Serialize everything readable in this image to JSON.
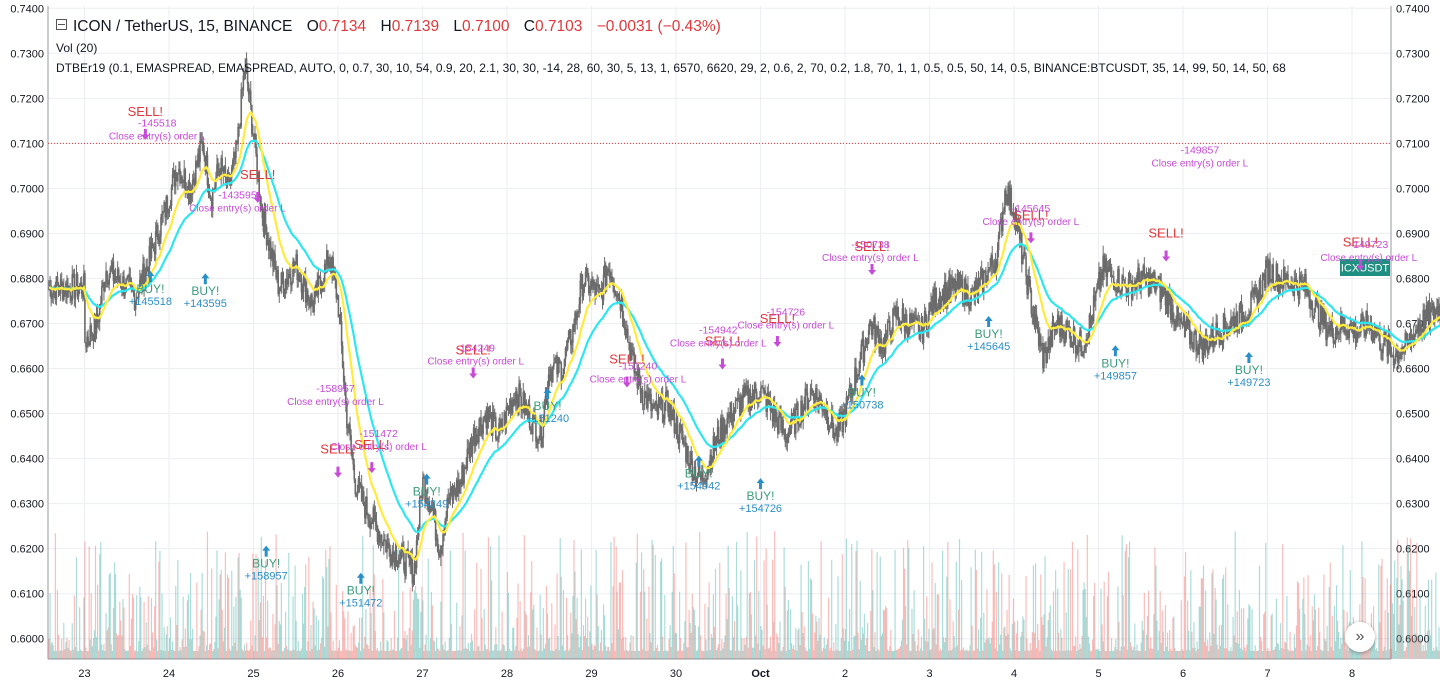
{
  "header": {
    "symbol": "ICON / TetherUS, 15, BINANCE",
    "o_label": "O",
    "o_value": "0.7134",
    "h_label": "H",
    "h_value": "0.7139",
    "l_label": "L",
    "l_value": "0.7100",
    "c_label": "C",
    "c_value": "0.7103",
    "change": "−0.0031 (−0.43%)"
  },
  "volume_label": "Vol (20)",
  "indicator_label": "DTBEr19 (0.1, EMASPREAD, EMASPREAD, AUTO, 0, 0.7, 30, 10, 54, 0.9, 20, 2.1, 30, 30, -14, 28, 60, 30, 5, 13, 1, 6570, 6620, 29, 2, 0.6, 2, 70, 0.2, 1.8, 70, 1, 1, 0.5, 0.5, 50, 14, 0.5, BINANCE:BTCUSDT, 35, 14, 99, 50, 14, 50, 68, 2...",
  "price_badge": "ICXUSDT",
  "colors": {
    "up": "#26a69a",
    "down": "#ef5350",
    "candle": "#6b6b6b",
    "ema_fast": "#ffeb3b",
    "ema_slow": "#2ee6f0",
    "buy": "#2a8ec9",
    "sell": "#e0383a",
    "close": "#c74ad8",
    "current_price_line": "#e0383a"
  },
  "chart_data": {
    "type": "candlestick",
    "y_ticks": [
      "0.7400",
      "0.7300",
      "0.7200",
      "0.7100",
      "0.7000",
      "0.6900",
      "0.6800",
      "0.6700",
      "0.6600",
      "0.6500",
      "0.6400",
      "0.6300",
      "0.6200",
      "0.6100",
      "0.6000"
    ],
    "ylim": [
      0.5955,
      0.7405
    ],
    "x_ticks": [
      "23",
      "24",
      "25",
      "26",
      "27",
      "28",
      "29",
      "30",
      "Oct",
      "2",
      "3",
      "4",
      "5",
      "6",
      "7",
      "8"
    ],
    "current_price": 0.71,
    "price_path": [
      [
        0,
        0.666
      ],
      [
        0.15,
        0.67
      ],
      [
        0.25,
        0.682
      ],
      [
        0.45,
        0.679
      ],
      [
        0.6,
        0.676
      ],
      [
        0.75,
        0.683
      ],
      [
        0.9,
        0.692
      ],
      [
        1.0,
        0.698
      ],
      [
        1.1,
        0.705
      ],
      [
        1.25,
        0.7
      ],
      [
        1.4,
        0.71
      ],
      [
        1.5,
        0.698
      ],
      [
        1.6,
        0.705
      ],
      [
        1.7,
        0.7
      ],
      [
        1.8,
        0.708
      ],
      [
        1.9,
        0.728
      ],
      [
        1.95,
        0.72
      ],
      [
        2.1,
        0.695
      ],
      [
        2.3,
        0.678
      ],
      [
        2.5,
        0.683
      ],
      [
        2.7,
        0.674
      ],
      [
        2.9,
        0.685
      ],
      [
        3.0,
        0.675
      ],
      [
        3.1,
        0.65
      ],
      [
        3.2,
        0.635
      ],
      [
        3.3,
        0.63
      ],
      [
        3.45,
        0.625
      ],
      [
        3.6,
        0.62
      ],
      [
        3.75,
        0.618
      ],
      [
        3.9,
        0.615
      ],
      [
        4.0,
        0.635
      ],
      [
        4.1,
        0.63
      ],
      [
        4.2,
        0.62
      ],
      [
        4.3,
        0.63
      ],
      [
        4.45,
        0.635
      ],
      [
        4.6,
        0.645
      ],
      [
        4.75,
        0.65
      ],
      [
        4.9,
        0.645
      ],
      [
        5.0,
        0.65
      ],
      [
        5.1,
        0.655
      ],
      [
        5.25,
        0.65
      ],
      [
        5.4,
        0.645
      ],
      [
        5.5,
        0.66
      ],
      [
        5.65,
        0.66
      ],
      [
        5.8,
        0.67
      ],
      [
        5.9,
        0.68
      ],
      [
        6.0,
        0.678
      ],
      [
        6.1,
        0.676
      ],
      [
        6.2,
        0.683
      ],
      [
        6.35,
        0.675
      ],
      [
        6.5,
        0.66
      ],
      [
        6.6,
        0.655
      ],
      [
        6.75,
        0.65
      ],
      [
        6.9,
        0.652
      ],
      [
        7.05,
        0.645
      ],
      [
        7.2,
        0.638
      ],
      [
        7.3,
        0.635
      ],
      [
        7.5,
        0.645
      ],
      [
        7.65,
        0.65
      ],
      [
        7.8,
        0.653
      ],
      [
        8.0,
        0.655
      ],
      [
        8.15,
        0.65
      ],
      [
        8.3,
        0.645
      ],
      [
        8.45,
        0.65
      ],
      [
        8.6,
        0.655
      ],
      [
        8.75,
        0.652
      ],
      [
        8.9,
        0.645
      ],
      [
        9.0,
        0.65
      ],
      [
        9.15,
        0.66
      ],
      [
        9.3,
        0.67
      ],
      [
        9.45,
        0.665
      ],
      [
        9.6,
        0.672
      ],
      [
        9.75,
        0.67
      ],
      [
        9.9,
        0.668
      ],
      [
        10.05,
        0.675
      ],
      [
        10.2,
        0.677
      ],
      [
        10.35,
        0.678
      ],
      [
        10.5,
        0.676
      ],
      [
        10.65,
        0.68
      ],
      [
        10.8,
        0.685
      ],
      [
        10.9,
        0.7
      ],
      [
        11.0,
        0.695
      ],
      [
        11.1,
        0.685
      ],
      [
        11.25,
        0.67
      ],
      [
        11.35,
        0.662
      ],
      [
        11.5,
        0.67
      ],
      [
        11.65,
        0.668
      ],
      [
        11.8,
        0.665
      ],
      [
        11.9,
        0.67
      ],
      [
        12.05,
        0.682
      ],
      [
        12.2,
        0.68
      ],
      [
        12.35,
        0.678
      ],
      [
        12.5,
        0.68
      ],
      [
        12.65,
        0.679
      ],
      [
        12.8,
        0.676
      ],
      [
        12.95,
        0.67
      ],
      [
        13.1,
        0.667
      ],
      [
        13.25,
        0.665
      ],
      [
        13.4,
        0.668
      ],
      [
        13.55,
        0.67
      ],
      [
        13.7,
        0.672
      ],
      [
        13.85,
        0.675
      ],
      [
        14.0,
        0.682
      ],
      [
        14.15,
        0.68
      ],
      [
        14.3,
        0.679
      ],
      [
        14.45,
        0.678
      ],
      [
        14.6,
        0.672
      ],
      [
        14.75,
        0.668
      ],
      [
        14.9,
        0.67
      ],
      [
        15.05,
        0.668
      ],
      [
        15.2,
        0.67
      ],
      [
        15.35,
        0.666
      ],
      [
        15.5,
        0.663
      ],
      [
        15.65,
        0.665
      ],
      [
        15.8,
        0.67
      ],
      [
        15.95,
        0.672
      ],
      [
        16.1,
        0.675
      ],
      [
        16.2,
        0.676
      ],
      [
        16.45,
        0.678
      ]
    ],
    "signals": [
      {
        "type": "buy",
        "day": 0.78,
        "price": 0.679,
        "label": "BUY!",
        "value": "+145518"
      },
      {
        "type": "buy",
        "day": 1.43,
        "price": 0.6785,
        "label": "BUY!",
        "value": "+143595"
      },
      {
        "type": "buy",
        "day": 2.15,
        "price": 0.618,
        "label": "BUY!",
        "value": "+158957"
      },
      {
        "type": "buy",
        "day": 3.27,
        "price": 0.612,
        "label": "BUY!",
        "value": "+151472"
      },
      {
        "type": "buy",
        "day": 4.05,
        "price": 0.634,
        "label": "BUY!",
        "value": "+154249"
      },
      {
        "type": "buy",
        "day": 5.48,
        "price": 0.653,
        "label": "BUY!",
        "value": "+151240"
      },
      {
        "type": "buy",
        "day": 7.27,
        "price": 0.638,
        "label": "BUY!",
        "value": "+154942"
      },
      {
        "type": "buy",
        "day": 8.0,
        "price": 0.633,
        "label": "BUY!",
        "value": "+154726"
      },
      {
        "type": "buy",
        "day": 9.2,
        "price": 0.656,
        "label": "BUY!",
        "value": "+150738"
      },
      {
        "type": "buy",
        "day": 10.7,
        "price": 0.669,
        "label": "BUY!",
        "value": "+145645"
      },
      {
        "type": "buy",
        "day": 12.2,
        "price": 0.6625,
        "label": "BUY!",
        "value": "+149857"
      },
      {
        "type": "buy",
        "day": 13.78,
        "price": 0.661,
        "label": "BUY!",
        "value": "+149723"
      },
      {
        "type": "sell",
        "day": 0.72,
        "price": 0.713,
        "label": "SELL!",
        "value": "-145518"
      },
      {
        "type": "sell",
        "day": 2.05,
        "price": 0.699,
        "label": "SELL!",
        "value": "-143595"
      },
      {
        "type": "sell",
        "day": 3.0,
        "price": 0.638,
        "label": "SELL!",
        "value": "-158957"
      },
      {
        "type": "sell",
        "day": 3.4,
        "price": 0.639,
        "label": "SELL!",
        "value": "-151472"
      },
      {
        "type": "sell",
        "day": 4.6,
        "price": 0.66,
        "label": "SELL!",
        "value": "-154249"
      },
      {
        "type": "sell",
        "day": 6.42,
        "price": 0.658,
        "label": "SELL!",
        "value": "-151240"
      },
      {
        "type": "sell",
        "day": 7.55,
        "price": 0.662,
        "label": "SELL!",
        "value": "-154942"
      },
      {
        "type": "sell",
        "day": 8.2,
        "price": 0.667,
        "label": "SELL!",
        "value": "-154726"
      },
      {
        "type": "sell",
        "day": 9.32,
        "price": 0.683,
        "label": "SELL!",
        "value": "-150738"
      },
      {
        "type": "sell",
        "day": 11.2,
        "price": 0.69,
        "label": "SELL!",
        "value": "-145645"
      },
      {
        "type": "sell",
        "day": 12.8,
        "price": 0.686,
        "label": "SELL!",
        "value": "-149857"
      },
      {
        "type": "sell",
        "day": 15.1,
        "price": 0.684,
        "label": "SELL!",
        "value": "-149723"
      }
    ],
    "close_label": "Close entry(s) order L",
    "close_marks": [
      {
        "day": 0.86,
        "price": 0.708,
        "value": "-145518"
      },
      {
        "day": 1.81,
        "price": 0.692,
        "value": "-143595"
      },
      {
        "day": 2.97,
        "price": 0.649,
        "value": "-158957"
      },
      {
        "day": 3.48,
        "price": 0.639,
        "value": "-151472"
      },
      {
        "day": 4.63,
        "price": 0.658,
        "value": "-154249"
      },
      {
        "day": 6.55,
        "price": 0.654,
        "value": "-151240"
      },
      {
        "day": 7.5,
        "price": 0.662,
        "value": "-154942"
      },
      {
        "day": 8.3,
        "price": 0.666,
        "value": "-154726"
      },
      {
        "day": 9.3,
        "price": 0.681,
        "value": "-150738"
      },
      {
        "day": 11.2,
        "price": 0.689,
        "value": "-145645"
      },
      {
        "day": 13.2,
        "price": 0.702,
        "value": "-149857"
      },
      {
        "day": 15.2,
        "price": 0.681,
        "value": "-149723"
      }
    ]
  }
}
